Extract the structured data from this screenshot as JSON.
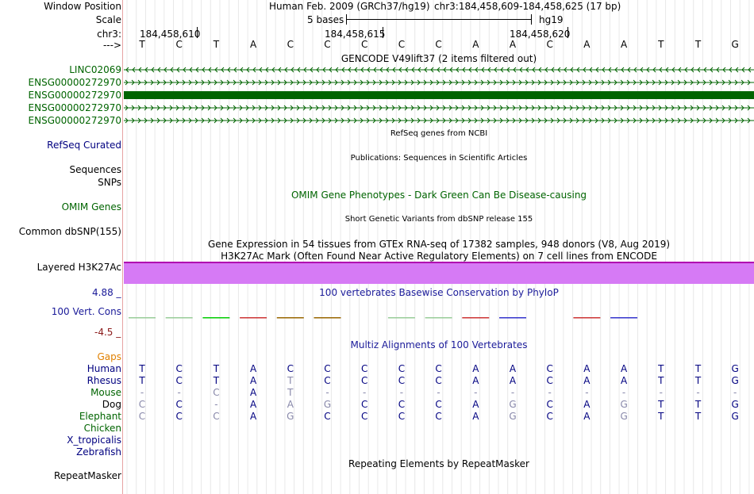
{
  "header": {
    "window_position_label": "Window Position",
    "scale_label": "Scale",
    "chrom_label": "chr3:",
    "strand_label": "--->",
    "assembly": "Human Feb. 2009 (GRCh37/hg19)",
    "position": "chr3:184,458,609-184,458,625 (17 bp)",
    "scale_text": "5 bases",
    "scale_db": "hg19",
    "ruler_ticks": [
      "184,458,610",
      "184,458,615",
      "184,458,620"
    ]
  },
  "sequence": [
    "T",
    "C",
    "T",
    "A",
    "C",
    "C",
    "C",
    "C",
    "C",
    "A",
    "A",
    "C",
    "A",
    "A",
    "T",
    "T",
    "G"
  ],
  "gencode": {
    "title": "GENCODE V49lift37 (2 items filtered out)",
    "items": [
      "LINC02069",
      "ENSG00000272970",
      "ENSG00000272970",
      "ENSG00000272970",
      "ENSG00000272970"
    ]
  },
  "refseq": {
    "title": "RefSeq genes from NCBI",
    "label": "RefSeq Curated"
  },
  "publications": {
    "title": "Publications: Sequences in Scientific Articles",
    "label": "Sequences"
  },
  "snps": {
    "label": "SNPs"
  },
  "omim": {
    "title": "OMIM Gene Phenotypes - Dark Green Can Be Disease-causing",
    "label": "OMIM Genes"
  },
  "dbsnp": {
    "title": "Short Genetic Variants from dbSNP release 155",
    "label": "Common dbSNP(155)"
  },
  "gtex": {
    "title": "Gene Expression in 54 tissues from GTEx RNA-seq of 17382 samples, 948 donors (V8, Aug 2019)"
  },
  "h3k27ac": {
    "title": "H3K27Ac Mark (Often Found Near Active Regulatory Elements) on 7 cell lines from ENCODE",
    "label": "Layered H3K27Ac"
  },
  "phylop": {
    "title": "100 vertebrates Basewise Conservation by PhyloP",
    "label": "100 Vert. Cons",
    "max": "4.88 _",
    "min": "-4.5 _"
  },
  "multiz": {
    "title": "Multiz Alignments of 100 Vertebrates",
    "gaps_label": "Gaps",
    "species": [
      {
        "name": "Human",
        "bases": [
          "T",
          "C",
          "T",
          "A",
          "C",
          "C",
          "C",
          "C",
          "C",
          "A",
          "A",
          "C",
          "A",
          "A",
          "T",
          "T",
          "G"
        ]
      },
      {
        "name": "Rhesus",
        "bases": [
          "T",
          "C",
          "T",
          "A",
          "T",
          "C",
          "C",
          "C",
          "C",
          "A",
          "A",
          "C",
          "A",
          "A",
          "T",
          "T",
          "G"
        ]
      },
      {
        "name": "Mouse",
        "bases": [
          "-",
          "-",
          "C",
          "A",
          "T",
          "-",
          "-",
          "-",
          "-",
          "-",
          "-",
          "-",
          "-",
          "-",
          "-",
          "-",
          "-"
        ]
      },
      {
        "name": "Dog",
        "bases": [
          "C",
          "C",
          "-",
          "A",
          "A",
          "G",
          "C",
          "C",
          "C",
          "A",
          "G",
          "C",
          "A",
          "G",
          "T",
          "T",
          "G"
        ]
      },
      {
        "name": "Elephant",
        "bases": [
          "C",
          "C",
          "C",
          "A",
          "G",
          "C",
          "C",
          "C",
          "C",
          "A",
          "G",
          "C",
          "A",
          "G",
          "T",
          "T",
          "G"
        ]
      },
      {
        "name": "Chicken",
        "bases": []
      },
      {
        "name": "X_tropicalis",
        "bases": []
      },
      {
        "name": "Zebrafish",
        "bases": []
      }
    ]
  },
  "repeatmasker": {
    "title": "Repeating Elements by RepeatMasker",
    "label": "RepeatMasker"
  },
  "colors": {
    "gencode_green": "#006400",
    "h3k27ac_fill": "#d67af5",
    "h3k27ac_border": "#b000b0",
    "navy": "#000080",
    "omim_green": "#006400",
    "gaps_orange": "#e08000"
  }
}
